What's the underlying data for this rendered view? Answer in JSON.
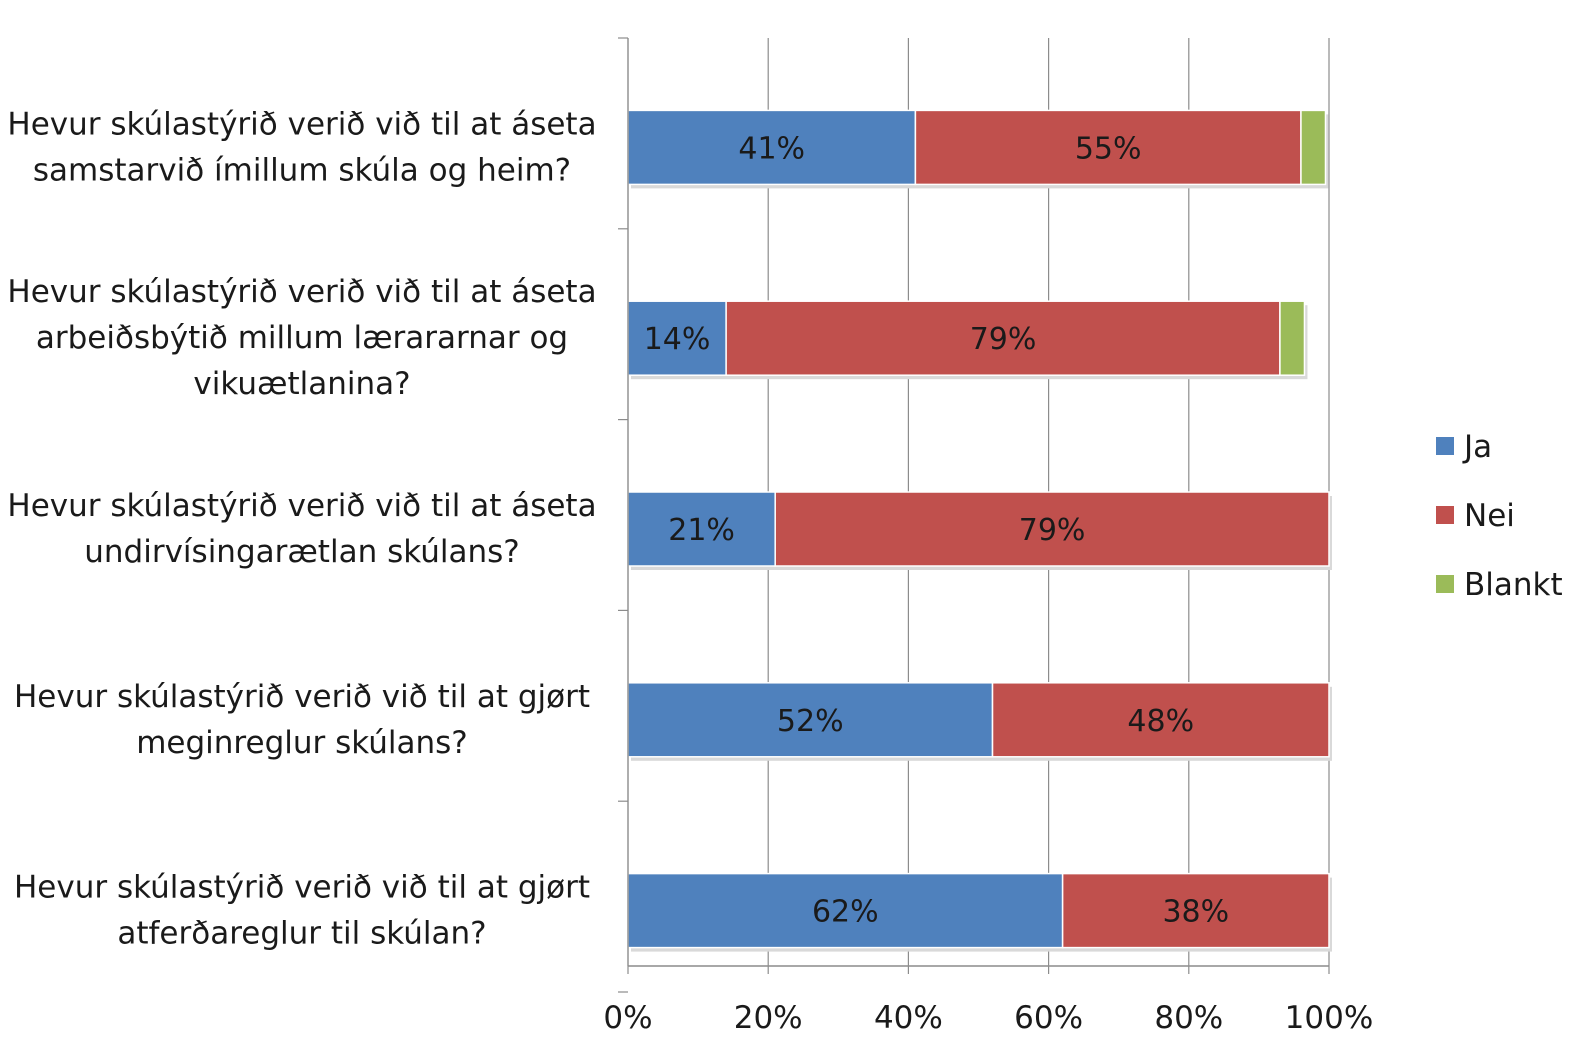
{
  "chart_data": {
    "type": "bar",
    "orientation": "horizontal",
    "stacked": "percent",
    "title": "",
    "xlabel": "",
    "ylabel": "",
    "categories": [
      [
        "Hevur skúlastýrið verið við til at áseta",
        "samstarvið ímillum skúla og heim?"
      ],
      [
        "Hevur skúlastýrið verið við til at áseta",
        "arbeiðsbýtið millum lærararnar og",
        "vikuætlanina?"
      ],
      [
        "Hevur skúlastýrið verið við til at áseta",
        "undirvísingarætlan skúlans?"
      ],
      [
        "Hevur skúlastýrið verið við til at gjørt",
        "meginreglur skúlans?"
      ],
      [
        "Hevur skúlastýrið verið við til at gjørt",
        "atferðareglur til skúlan?"
      ]
    ],
    "series": [
      {
        "name": "Ja",
        "color": "#4f81bd",
        "values": [
          41,
          14,
          21,
          52,
          62
        ],
        "labels": [
          "41%",
          "14%",
          "21%",
          "52%",
          "62%"
        ]
      },
      {
        "name": "Nei",
        "color": "#c0504d",
        "values": [
          55,
          79,
          79,
          48,
          38
        ],
        "labels": [
          "55%",
          "79%",
          "79%",
          "48%",
          "38%"
        ]
      },
      {
        "name": "Blankt",
        "color": "#9bbb59",
        "values": [
          3.5,
          3.5,
          0,
          0,
          0
        ],
        "labels": [
          "",
          "",
          "",
          "",
          ""
        ]
      }
    ],
    "xlim": [
      0,
      100
    ],
    "xticks": [
      "0%",
      "20%",
      "40%",
      "60%",
      "80%",
      "100%"
    ],
    "grid": "vertical",
    "legend_position": "right"
  }
}
